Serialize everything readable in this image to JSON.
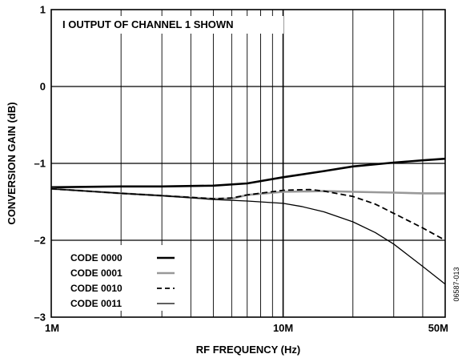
{
  "chart_data": {
    "type": "line",
    "xlabel": "RF FREQUENCY (Hz)",
    "ylabel": "CONVERSION GAIN (dB)",
    "x_scale": "log",
    "xlim": [
      1000000,
      50000000
    ],
    "ylim": [
      -3,
      1
    ],
    "x_ticks": [
      {
        "value": 1000000,
        "label": "1M"
      },
      {
        "value": 10000000,
        "label": "10M"
      },
      {
        "value": 50000000,
        "label": "50M"
      }
    ],
    "y_ticks": [
      {
        "value": 1,
        "label": "1"
      },
      {
        "value": 0,
        "label": "0"
      },
      {
        "value": -1,
        "label": "–1"
      },
      {
        "value": -2,
        "label": "–2"
      },
      {
        "value": -3,
        "label": "–3"
      }
    ],
    "grid": true,
    "annotation": "I OUTPUT OF CHANNEL 1 SHOWN",
    "figure_id": "06587-013",
    "legend_position": "bottom-left",
    "series": [
      {
        "name": "CODE 0000",
        "color": "#000000",
        "style": "thick-solid",
        "x": [
          1000000,
          2000000,
          3000000,
          5000000,
          7000000,
          10000000,
          15000000,
          20000000,
          30000000,
          40000000,
          50000000
        ],
        "y": [
          -1.31,
          -1.3,
          -1.3,
          -1.29,
          -1.26,
          -1.18,
          -1.1,
          -1.04,
          -0.99,
          -0.96,
          -0.94
        ]
      },
      {
        "name": "CODE 0001",
        "color": "#999999",
        "style": "thick-solid",
        "x": [
          1000000,
          2000000,
          3000000,
          5000000,
          6000000,
          7000000,
          10000000,
          15000000,
          20000000,
          30000000,
          40000000,
          50000000
        ],
        "y": [
          -1.33,
          -1.39,
          -1.42,
          -1.46,
          -1.46,
          -1.41,
          -1.37,
          -1.36,
          -1.37,
          -1.38,
          -1.39,
          -1.39
        ]
      },
      {
        "name": "CODE 0010",
        "color": "#000000",
        "style": "dashed",
        "x": [
          1000000,
          2000000,
          3000000,
          5000000,
          6000000,
          7000000,
          10000000,
          13000000,
          15000000,
          20000000,
          25000000,
          30000000,
          40000000,
          50000000
        ],
        "y": [
          -1.33,
          -1.39,
          -1.42,
          -1.46,
          -1.45,
          -1.41,
          -1.35,
          -1.34,
          -1.36,
          -1.43,
          -1.53,
          -1.65,
          -1.84,
          -2.0
        ]
      },
      {
        "name": "CODE 0011",
        "color": "#000000",
        "style": "thin-solid",
        "x": [
          1000000,
          2000000,
          3000000,
          5000000,
          7000000,
          10000000,
          12000000,
          15000000,
          20000000,
          25000000,
          30000000,
          40000000,
          50000000
        ],
        "y": [
          -1.33,
          -1.39,
          -1.42,
          -1.47,
          -1.49,
          -1.52,
          -1.56,
          -1.63,
          -1.76,
          -1.9,
          -2.05,
          -2.34,
          -2.57
        ]
      }
    ]
  }
}
